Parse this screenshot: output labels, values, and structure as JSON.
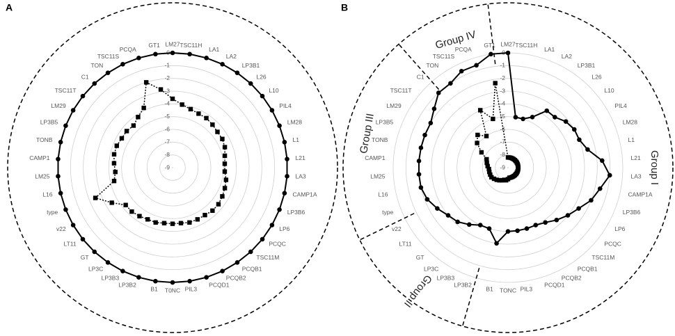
{
  "chart_data": [
    {
      "type": "radar",
      "label": "A",
      "categories": [
        "LM27",
        "TSC11H",
        "LA1",
        "LA2",
        "LP3B1",
        "L26",
        "L10",
        "PIL4",
        "LM28",
        "L1",
        "L21",
        "LA3",
        "CAMP1A",
        "LP3B6",
        "LP6",
        "PCQC",
        "TSC11M",
        "PCQB1",
        "PCQB2",
        "PCQD1",
        "PIL3",
        "T0NC",
        "B1",
        "LP3B2",
        "LP3B3",
        "LP3C",
        "GT",
        "LT11",
        "v22",
        "type",
        "L16",
        "LM25",
        "CAMP1",
        "TONB",
        "LP3B5",
        "LM29",
        "TSC11T",
        "C1",
        "TON",
        "TSC11S",
        "PCQA",
        "GT1"
      ],
      "ylim": [
        -9,
        0
      ],
      "yticks": [
        0,
        -1,
        -2,
        -3,
        -4,
        -5,
        -6,
        -7,
        -8,
        -9
      ],
      "grid": true,
      "series": [
        {
          "marker": "circle",
          "line_style": "solid",
          "color": "#000000",
          "values": [
            0,
            0,
            0,
            0,
            0,
            0,
            0,
            0,
            0,
            0,
            0,
            0,
            0,
            0,
            0,
            0,
            0,
            0,
            0,
            0,
            0,
            0,
            0,
            0,
            0,
            0,
            0,
            0,
            0,
            0,
            0,
            0,
            0,
            0,
            0,
            0,
            0,
            0,
            0,
            0,
            0,
            0
          ]
        },
        {
          "marker": "square",
          "line_style": "dotted",
          "color": "#000000",
          "values": [
            -3.6,
            -4,
            -4.2,
            -4.3,
            -4.3,
            -4.4,
            -4.5,
            -4.5,
            -4.6,
            -4.8,
            -4.9,
            -4.9,
            -4.7,
            -4.6,
            -4.5,
            -4.4,
            -4.4,
            -4.5,
            -4.5,
            -4.5,
            -4.6,
            -4.6,
            -4.6,
            -4.5,
            -4.5,
            -4.4,
            -4.3,
            -4.3,
            -3.5,
            -2.5,
            -4.3,
            -4.5,
            -4.4,
            -4.3,
            -4.3,
            -4.4,
            -4.4,
            -4.5,
            -4.2,
            -3.8,
            -2,
            -2.8
          ]
        }
      ]
    },
    {
      "type": "radar",
      "label": "B",
      "categories": [
        "LM27",
        "TSC11H",
        "LA1",
        "LA2",
        "LP3B1",
        "L26",
        "L10",
        "PIL4",
        "LM28",
        "L1",
        "L21",
        "LA3",
        "CAMP1A",
        "LP3B6",
        "LP6",
        "PCQC",
        "TSC11M",
        "PCQB1",
        "PCQB2",
        "PCQD1",
        "PIL3",
        "TONC",
        "B1",
        "LP3B2",
        "LP3B3",
        "LP3C",
        "GT",
        "LT11",
        "v22",
        "type",
        "L16",
        "LM25",
        "CAMP1",
        "TONB",
        "LP3B5",
        "LM29",
        "TSC11T",
        "C1",
        "TON",
        "TSC11S",
        "PCQA",
        "GT1"
      ],
      "ylim": [
        -9,
        0
      ],
      "yticks": [
        0,
        -1,
        -2,
        -3,
        -4,
        -5,
        -6,
        -7,
        -8,
        -9
      ],
      "grid": true,
      "annotations": [
        "Group IV",
        "Group III",
        "Group I",
        "Group II"
      ],
      "series": [
        {
          "marker": "circle",
          "line_style": "solid",
          "color": "#000000",
          "values": [
            0,
            -5,
            -5,
            -4.6,
            -3.6,
            -3.6,
            -3.2,
            -3,
            -3,
            -2.6,
            -1.6,
            -1,
            -1.6,
            -2,
            -2.6,
            -3,
            -3.4,
            -3.8,
            -4,
            -4,
            -4,
            -4,
            -3,
            -4,
            -4,
            -3.6,
            -3.2,
            -3,
            -2.6,
            -2.2,
            -2,
            -2,
            -2,
            -2,
            -2,
            -2,
            -1.6,
            -1,
            -1,
            -0.6,
            -0.6,
            0
          ]
        },
        {
          "marker": "square",
          "line_style": "dotted",
          "color": "#000000",
          "values": [
            -8.2,
            -8.2,
            -8.2,
            -8.2,
            -8.2,
            -8.2,
            -8.2,
            -8.2,
            -8.2,
            -8.2,
            -8.2,
            -8.2,
            -8.2,
            -8.2,
            -8.2,
            -8.2,
            -8.2,
            -8.2,
            -8.2,
            -8.2,
            -8.2,
            -8.1,
            -8,
            -8,
            -7.9,
            -7.8,
            -7.7,
            -7.6,
            -7.5,
            -7.5,
            -7.5,
            -7.5,
            -7.4,
            -7.3,
            -7.2,
            -6.6,
            -5.9,
            -5.5,
            -6,
            -4,
            -5,
            -2.3
          ]
        }
      ]
    }
  ]
}
